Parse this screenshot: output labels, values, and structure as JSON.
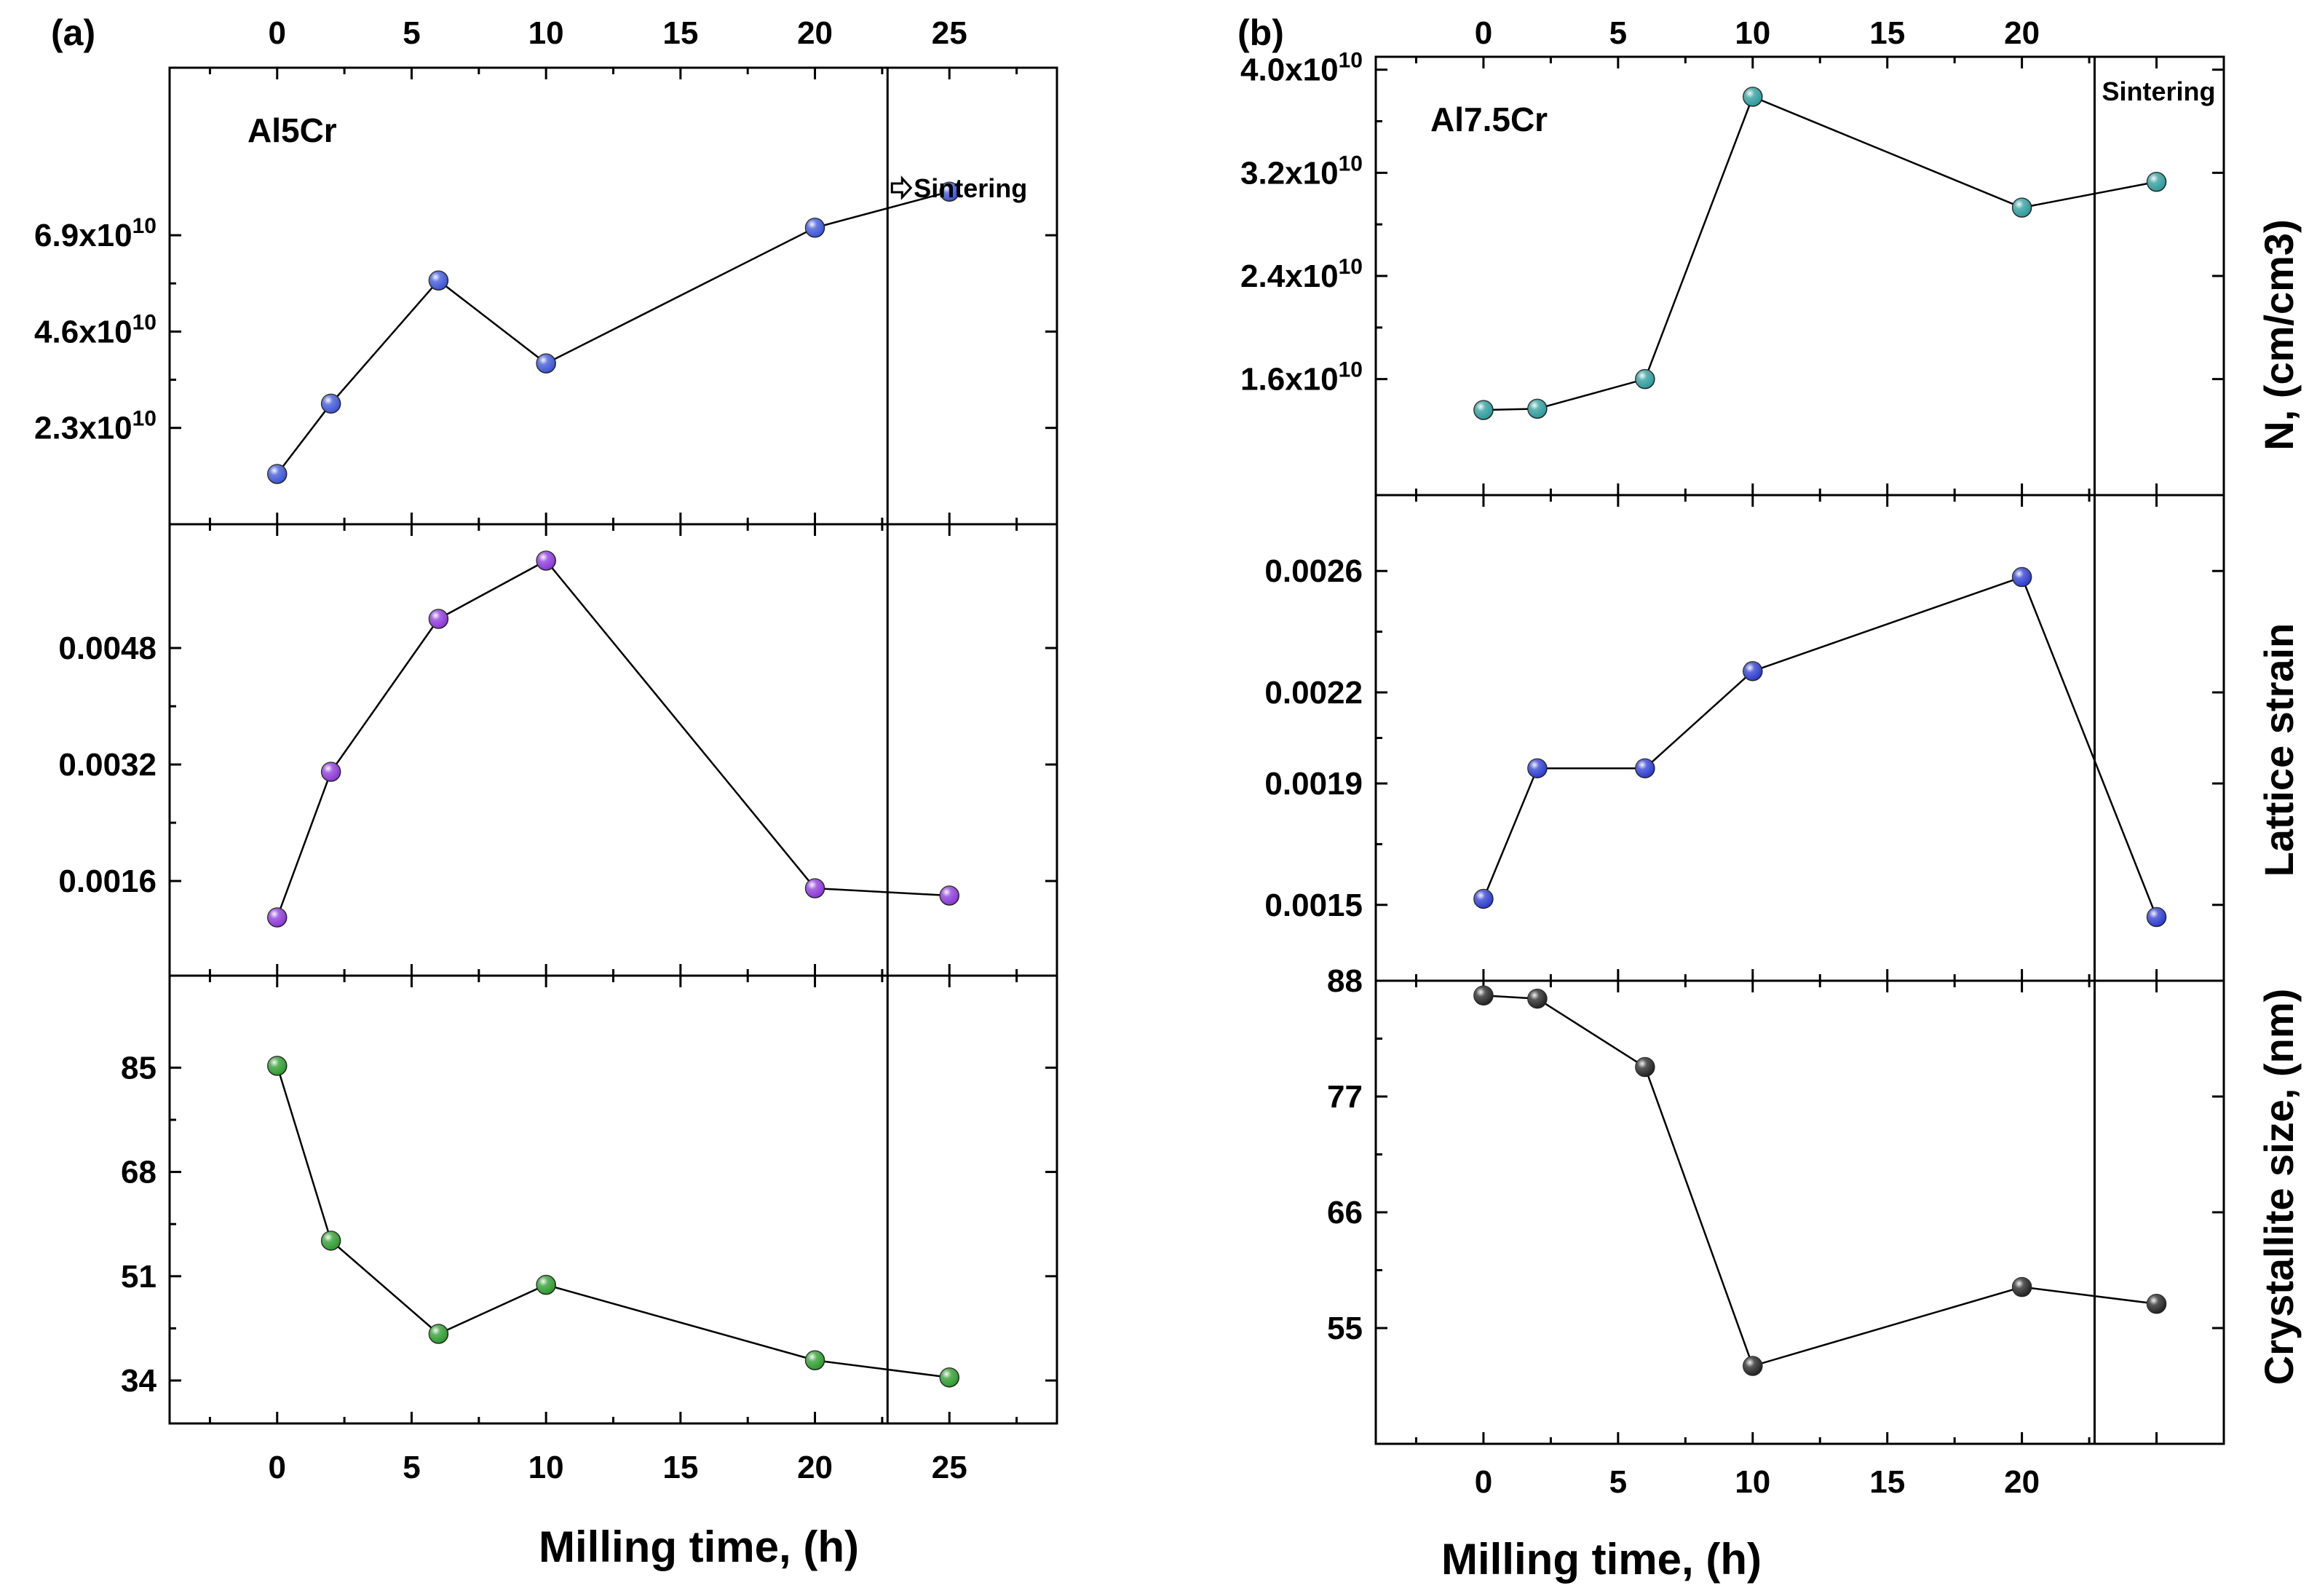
{
  "chart_data": [
    {
      "panel": "(a)",
      "alloy": "Al5Cr",
      "type": "line",
      "xlabel": "Milling time, (h)",
      "xlim": [
        -4,
        29
      ],
      "xticks": [
        0,
        5,
        10,
        15,
        20,
        25
      ],
      "top_xticks": [
        0,
        5,
        10,
        15,
        20,
        25
      ],
      "sintering": {
        "label": "Sintering",
        "x": 22.7,
        "arrow": true
      },
      "subplots": [
        {
          "key": "dislocation",
          "ylabel": "",
          "ylim": [
            0,
            10.9
          ],
          "ytick_values": [
            2.3,
            4.6,
            6.9
          ],
          "ytick_mantissas": [
            "2.3x10",
            "4.6x10",
            "6.9x10"
          ],
          "ytick_exp": "10",
          "color": "#3a53d6",
          "x": [
            0,
            2,
            6,
            10,
            20,
            25
          ],
          "y": [
            1.2,
            2.88,
            5.82,
            3.84,
            7.08,
            7.94
          ]
        },
        {
          "key": "strain",
          "ylabel": "",
          "ylim": [
            0.0003,
            0.0065
          ],
          "ytick_values": [
            0.0016,
            0.0032,
            0.0048
          ],
          "ytick_labels": [
            "0.0016",
            "0.0032",
            "0.0048"
          ],
          "color": "#8a35d8",
          "x": [
            0,
            2,
            6,
            10,
            20,
            25
          ],
          "y": [
            0.0011,
            0.0031,
            0.0052,
            0.006,
            0.0015,
            0.0014
          ]
        },
        {
          "key": "crystallite",
          "ylabel": "",
          "ylim": [
            27,
            100
          ],
          "ytick_values": [
            34,
            51,
            68,
            85
          ],
          "ytick_labels": [
            "34",
            "51",
            "68",
            "85"
          ],
          "color": "#2a9a2a",
          "x": [
            0,
            2,
            6,
            10,
            20,
            25
          ],
          "y": [
            85.3,
            56.8,
            41.6,
            49.6,
            37.3,
            34.5
          ]
        }
      ]
    },
    {
      "panel": "(b)",
      "alloy": "Al7.5Cr",
      "type": "line",
      "xlabel": "Milling time, (h)",
      "xlim": [
        -4,
        27.5
      ],
      "xticks": [
        0,
        5,
        10,
        15,
        20
      ],
      "top_xticks": [
        0,
        5,
        10,
        15,
        20
      ],
      "sintering": {
        "label": "Sintering",
        "x": 22.7,
        "arrow": false
      },
      "subplots": [
        {
          "key": "dislocation",
          "ylabel": "N, (cm/cm3)",
          "ylim": [
            0.7,
            4.1
          ],
          "ytick_values": [
            1.6,
            2.4,
            3.2,
            4.0
          ],
          "ytick_mantissas": [
            "1.6x10",
            "2.4x10",
            "3.2x10",
            "4.0x10"
          ],
          "ytick_exp": "10",
          "color": "#2a9a9a",
          "x": [
            0,
            2,
            6,
            10,
            20,
            25
          ],
          "y": [
            1.36,
            1.37,
            1.6,
            3.79,
            2.93,
            3.13
          ]
        },
        {
          "key": "strain",
          "ylabel": "Lattice strain",
          "ylim": [
            0.00125,
            0.00285
          ],
          "ytick_values": [
            0.0015,
            0.0019,
            0.0022,
            0.0026
          ],
          "ytick_labels": [
            "0.0015",
            "0.0019",
            "0.0022",
            "0.0026"
          ],
          "color": "#2a3ad0",
          "x": [
            0,
            2,
            6,
            10,
            20,
            25
          ],
          "y": [
            0.00152,
            0.00195,
            0.00195,
            0.00227,
            0.00258,
            0.00146
          ]
        },
        {
          "key": "crystallite",
          "ylabel": "Crystallite size, (nm)",
          "ylim": [
            44,
            88
          ],
          "ytick_values": [
            55,
            66,
            77,
            88
          ],
          "ytick_labels": [
            "55",
            "66",
            "77",
            "88"
          ],
          "color": "#222222",
          "x": [
            0,
            2,
            6,
            10,
            20,
            25
          ],
          "y": [
            86.6,
            86.3,
            79.8,
            51.4,
            58.9,
            57.3
          ]
        }
      ]
    }
  ]
}
